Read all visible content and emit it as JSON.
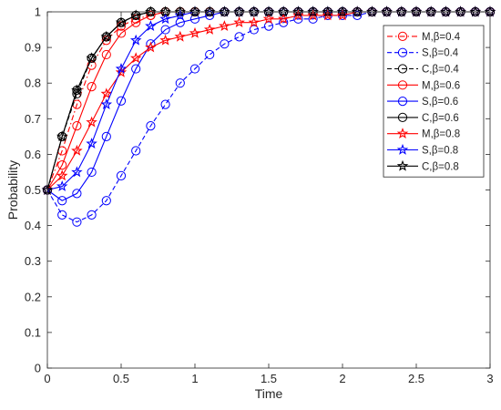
{
  "chart_data": {
    "type": "line",
    "xlabel": "Time",
    "ylabel": "Probability",
    "xlim": [
      0,
      3
    ],
    "ylim": [
      0,
      1
    ],
    "xticks": [
      0,
      0.5,
      1,
      1.5,
      2,
      2.5,
      3
    ],
    "xtick_labels": [
      "0",
      "0.5",
      "1",
      "1.5",
      "2",
      "2.5",
      "3"
    ],
    "yticks": [
      0,
      0.1,
      0.2,
      0.3,
      0.4,
      0.5,
      0.6,
      0.7,
      0.8,
      0.9,
      1
    ],
    "ytick_labels": [
      "0",
      "0.1",
      "0.2",
      "0.3",
      "0.4",
      "0.5",
      "0.6",
      "0.7",
      "0.8",
      "0.9",
      "1"
    ],
    "grid": false,
    "legend_position": "top-right",
    "x": [
      0,
      0.1,
      0.2,
      0.3,
      0.4,
      0.5,
      0.6,
      0.7,
      0.8,
      0.9,
      1.0,
      1.1,
      1.2,
      1.3,
      1.4,
      1.5,
      1.6,
      1.7,
      1.8,
      1.9,
      2.0,
      2.1,
      2.2,
      2.3,
      2.4,
      2.5,
      2.6,
      2.7,
      2.8,
      2.9,
      3.0
    ],
    "series": [
      {
        "name": "M,β=0.4",
        "color": "#ff0000",
        "line_style": "dashdot",
        "marker": "circle",
        "values": [
          0.5,
          0.61,
          0.74,
          0.85,
          0.92,
          0.96,
          0.98,
          0.99,
          1.0,
          1.0,
          1.0,
          1.0,
          1.0,
          1.0,
          1.0,
          1.0,
          1.0,
          1.0,
          1.0,
          1.0,
          1.0,
          1.0,
          1.0,
          1.0,
          1.0,
          1.0,
          1.0,
          1.0,
          1.0,
          1.0,
          1.0
        ]
      },
      {
        "name": "S,β=0.4",
        "color": "#0000ff",
        "line_style": "dash",
        "marker": "circle",
        "values": [
          0.5,
          0.43,
          0.41,
          0.43,
          0.47,
          0.54,
          0.61,
          0.68,
          0.74,
          0.8,
          0.84,
          0.88,
          0.91,
          0.93,
          0.95,
          0.96,
          0.97,
          0.98,
          0.98,
          0.99,
          0.99,
          0.99,
          1.0,
          1.0,
          1.0,
          1.0,
          1.0,
          1.0,
          1.0,
          1.0,
          1.0
        ]
      },
      {
        "name": "C,β=0.4",
        "color": "#000000",
        "line_style": "dash",
        "marker": "circle",
        "values": [
          0.5,
          0.65,
          0.77,
          0.87,
          0.93,
          0.97,
          0.99,
          1.0,
          1.0,
          1.0,
          1.0,
          1.0,
          1.0,
          1.0,
          1.0,
          1.0,
          1.0,
          1.0,
          1.0,
          1.0,
          1.0,
          1.0,
          1.0,
          1.0,
          1.0,
          1.0,
          1.0,
          1.0,
          1.0,
          1.0,
          1.0
        ]
      },
      {
        "name": "M,β=0.6",
        "color": "#ff0000",
        "line_style": "solid",
        "marker": "circle",
        "values": [
          0.5,
          0.57,
          0.68,
          0.79,
          0.88,
          0.94,
          0.97,
          0.99,
          1.0,
          1.0,
          1.0,
          1.0,
          1.0,
          1.0,
          1.0,
          1.0,
          1.0,
          1.0,
          1.0,
          1.0,
          1.0,
          1.0,
          1.0,
          1.0,
          1.0,
          1.0,
          1.0,
          1.0,
          1.0,
          1.0,
          1.0
        ]
      },
      {
        "name": "S,β=0.6",
        "color": "#0000ff",
        "line_style": "solid",
        "marker": "circle",
        "values": [
          0.5,
          0.47,
          0.49,
          0.55,
          0.65,
          0.75,
          0.84,
          0.91,
          0.95,
          0.97,
          0.98,
          0.99,
          1.0,
          1.0,
          1.0,
          1.0,
          1.0,
          1.0,
          1.0,
          1.0,
          1.0,
          1.0,
          1.0,
          1.0,
          1.0,
          1.0,
          1.0,
          1.0,
          1.0,
          1.0,
          1.0
        ]
      },
      {
        "name": "C,β=0.6",
        "color": "#000000",
        "line_style": "solid",
        "marker": "circle",
        "values": [
          0.5,
          0.65,
          0.78,
          0.87,
          0.93,
          0.97,
          0.99,
          1.0,
          1.0,
          1.0,
          1.0,
          1.0,
          1.0,
          1.0,
          1.0,
          1.0,
          1.0,
          1.0,
          1.0,
          1.0,
          1.0,
          1.0,
          1.0,
          1.0,
          1.0,
          1.0,
          1.0,
          1.0,
          1.0,
          1.0,
          1.0
        ]
      },
      {
        "name": "M,β=0.8",
        "color": "#ff0000",
        "line_style": "solid",
        "marker": "star",
        "values": [
          0.5,
          0.54,
          0.61,
          0.69,
          0.77,
          0.83,
          0.87,
          0.9,
          0.92,
          0.93,
          0.94,
          0.95,
          0.96,
          0.97,
          0.97,
          0.98,
          0.98,
          0.99,
          0.99,
          0.99,
          0.99,
          1.0,
          1.0,
          1.0,
          1.0,
          1.0,
          1.0,
          1.0,
          1.0,
          1.0,
          1.0
        ]
      },
      {
        "name": "S,β=0.8",
        "color": "#0000ff",
        "line_style": "solid",
        "marker": "star",
        "values": [
          0.5,
          0.51,
          0.55,
          0.63,
          0.74,
          0.84,
          0.92,
          0.96,
          0.98,
          0.99,
          1.0,
          1.0,
          1.0,
          1.0,
          1.0,
          1.0,
          1.0,
          1.0,
          1.0,
          1.0,
          1.0,
          1.0,
          1.0,
          1.0,
          1.0,
          1.0,
          1.0,
          1.0,
          1.0,
          1.0,
          1.0
        ]
      },
      {
        "name": "C,β=0.8",
        "color": "#000000",
        "line_style": "solid",
        "marker": "star",
        "values": [
          0.5,
          0.65,
          0.78,
          0.87,
          0.93,
          0.97,
          0.99,
          1.0,
          1.0,
          1.0,
          1.0,
          1.0,
          1.0,
          1.0,
          1.0,
          1.0,
          1.0,
          1.0,
          1.0,
          1.0,
          1.0,
          1.0,
          1.0,
          1.0,
          1.0,
          1.0,
          1.0,
          1.0,
          1.0,
          1.0,
          1.0
        ]
      }
    ]
  }
}
